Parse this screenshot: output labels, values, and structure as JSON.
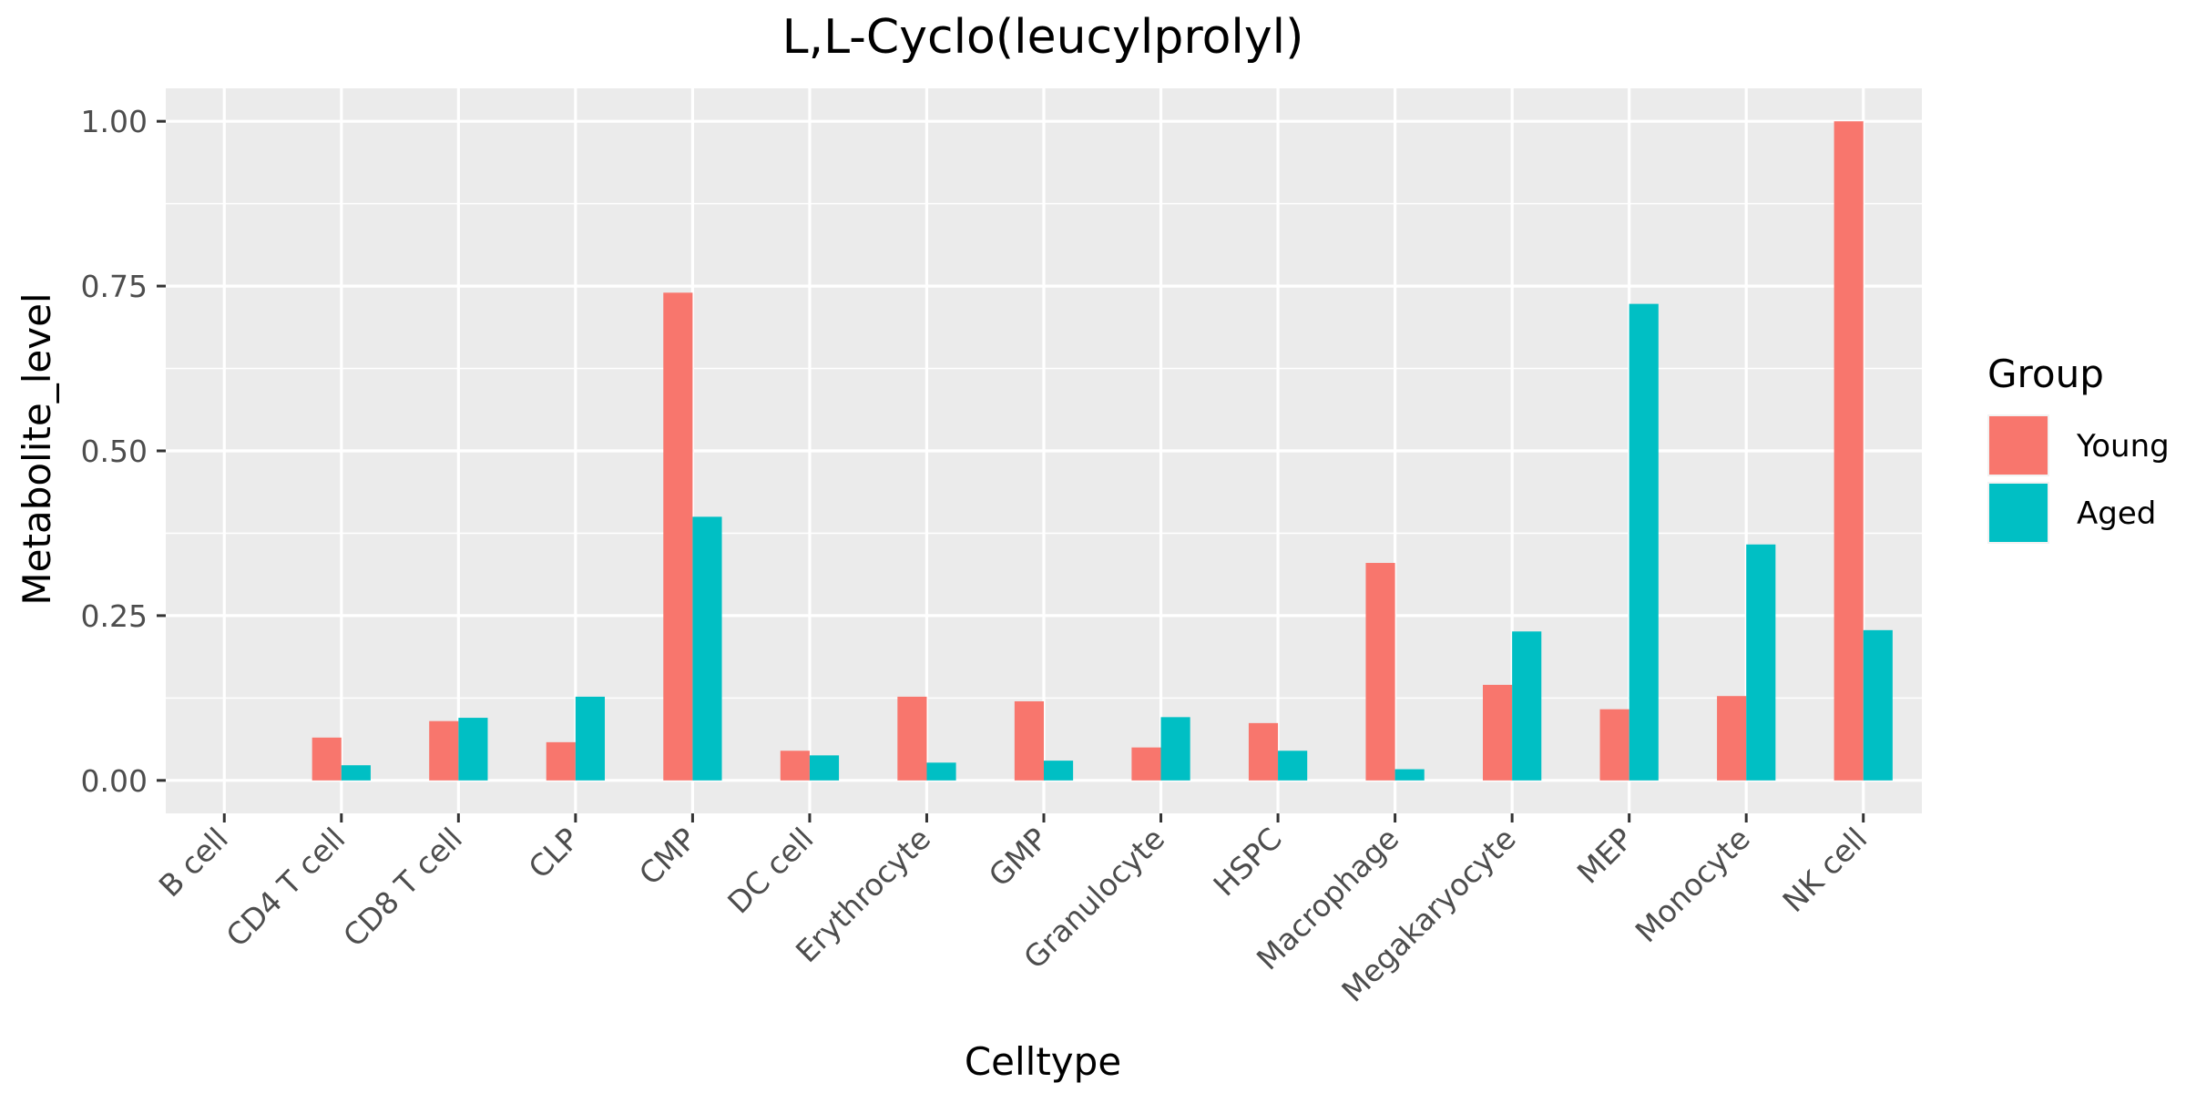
{
  "chart_data": {
    "type": "bar",
    "title": "L,L-Cyclo(leucylprolyl)",
    "xlabel": "Celltype",
    "ylabel": "Metabolite_level",
    "ylim": [
      -0.05,
      1.05
    ],
    "yticks": [
      0.0,
      0.25,
      0.5,
      0.75,
      1.0
    ],
    "ytick_labels": [
      "0.00",
      "0.25",
      "0.50",
      "0.75",
      "1.00"
    ],
    "grid": true,
    "legend": {
      "title": "Group",
      "position": "right"
    },
    "categories": [
      "B cell",
      "CD4 T cell",
      "CD8 T cell",
      "CLP",
      "CMP",
      "DC cell",
      "Erythrocyte",
      "GMP",
      "Granulocyte",
      "HSPC",
      "Macrophage",
      "Megakaryocyte",
      "MEP",
      "Monocyte",
      "NK cell"
    ],
    "series": [
      {
        "name": "Young",
        "color": "#F8766D",
        "values": [
          0.0,
          0.065,
          0.09,
          0.058,
          0.74,
          0.045,
          0.127,
          0.12,
          0.05,
          0.087,
          0.33,
          0.145,
          0.108,
          0.128,
          1.0
        ]
      },
      {
        "name": "Aged",
        "color": "#00BFC4",
        "values": [
          0.0,
          0.023,
          0.095,
          0.127,
          0.4,
          0.038,
          0.027,
          0.03,
          0.096,
          0.045,
          0.017,
          0.226,
          0.723,
          0.358,
          0.228
        ]
      }
    ]
  }
}
